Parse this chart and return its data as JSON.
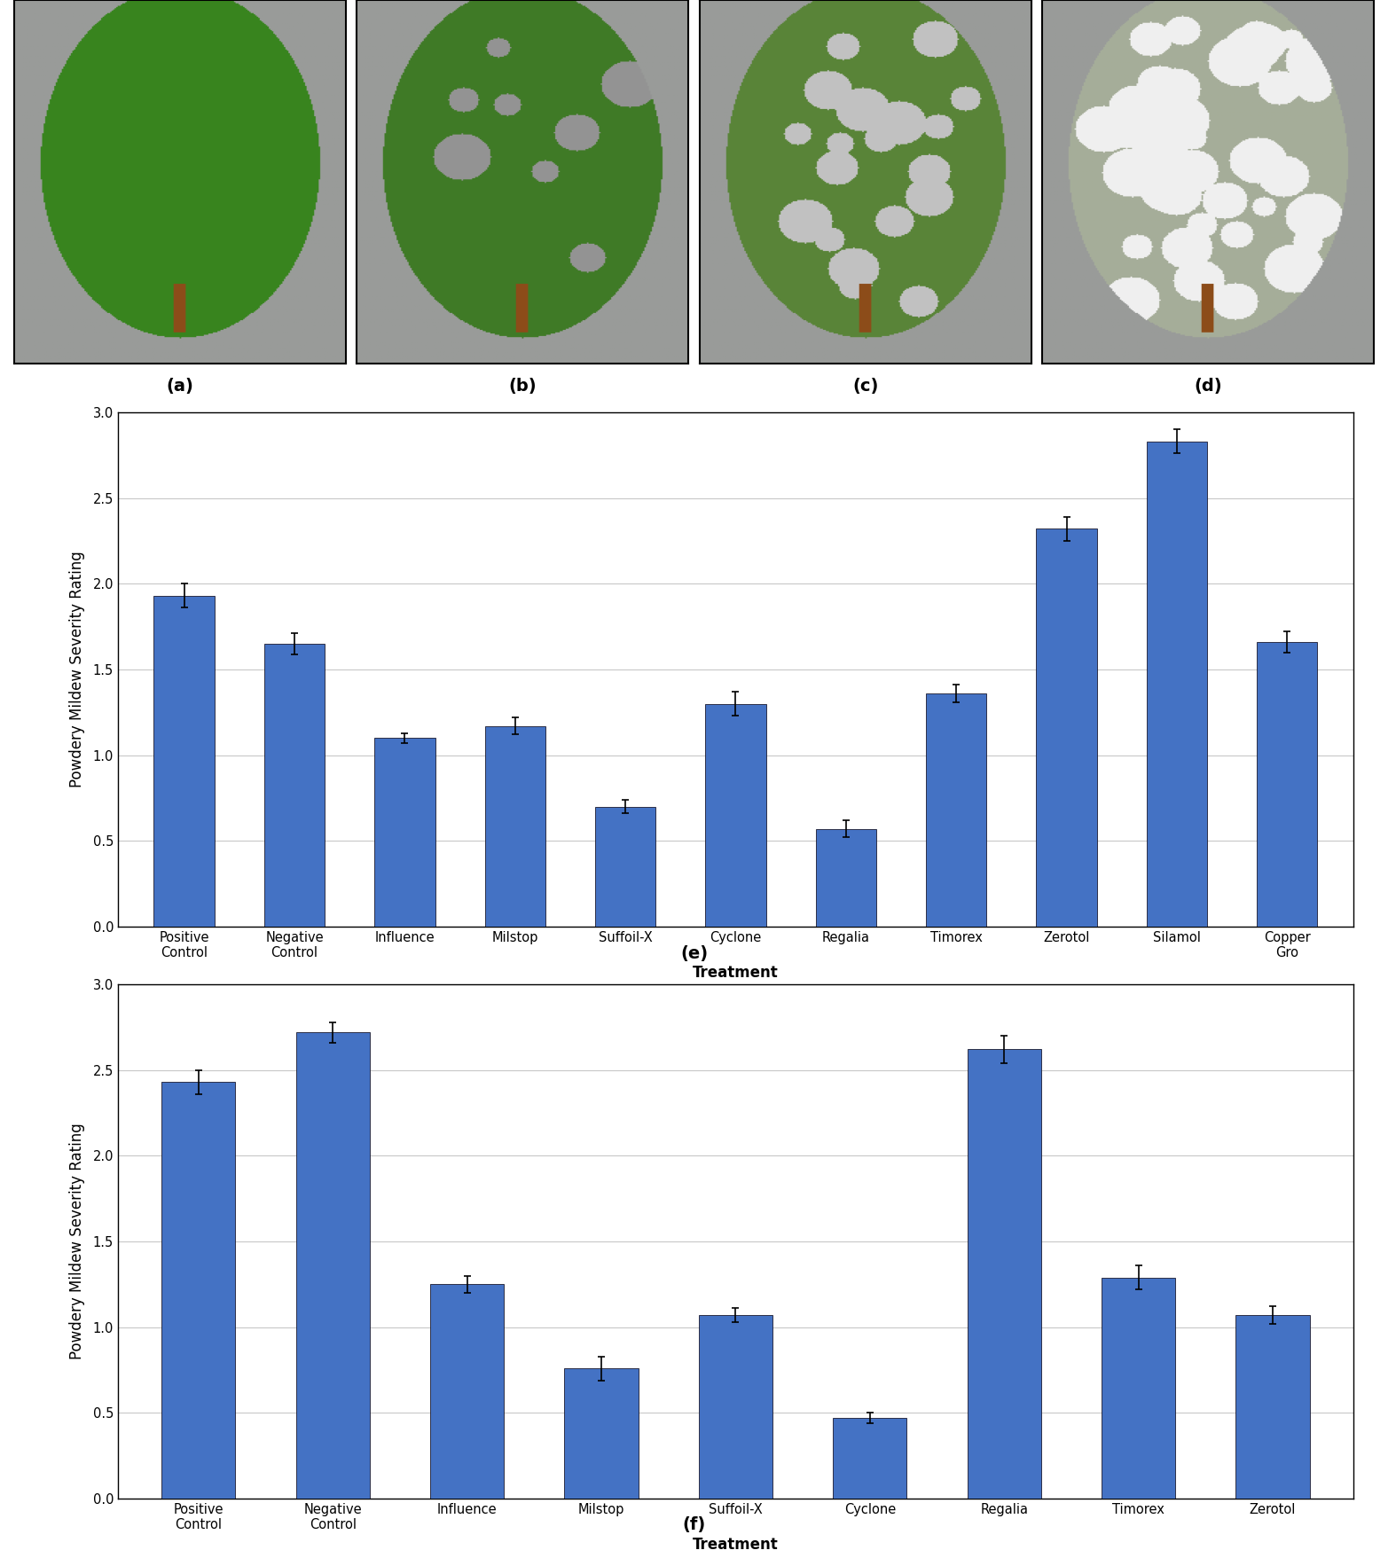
{
  "chart_e": {
    "categories": [
      "Positive\nControl",
      "Negative\nControl",
      "Influence",
      "Milstop",
      "Suffoil-X",
      "Cyclone",
      "Regalia",
      "Timorex",
      "Zerotol",
      "Silamol",
      "Copper\nGro"
    ],
    "values": [
      1.93,
      1.65,
      1.1,
      1.17,
      0.7,
      1.3,
      0.57,
      1.36,
      2.32,
      2.83,
      1.66
    ],
    "errors": [
      0.07,
      0.06,
      0.03,
      0.05,
      0.04,
      0.07,
      0.05,
      0.05,
      0.07,
      0.07,
      0.06
    ],
    "ylabel": "Powdery Mildew Severity Rating",
    "xlabel": "Treatment",
    "label": "(e)",
    "ylim": [
      0,
      3.0
    ],
    "yticks": [
      0.0,
      0.5,
      1.0,
      1.5,
      2.0,
      2.5,
      3.0
    ]
  },
  "chart_f": {
    "categories": [
      "Positive\nControl",
      "Negative\nControl",
      "Influence",
      "Milstop",
      "Suffoil-X",
      "Cyclone",
      "Regalia",
      "Timorex",
      "Zerotol"
    ],
    "values": [
      2.43,
      2.72,
      1.25,
      0.76,
      1.07,
      0.47,
      2.62,
      1.29,
      1.07
    ],
    "errors": [
      0.07,
      0.06,
      0.05,
      0.07,
      0.04,
      0.03,
      0.08,
      0.07,
      0.05
    ],
    "ylabel": "Powdery Mildew Severity Rating",
    "xlabel": "Treatment",
    "label": "(f)",
    "ylim": [
      0,
      3.0
    ],
    "yticks": [
      0.0,
      0.5,
      1.0,
      1.5,
      2.0,
      2.5,
      3.0
    ]
  },
  "bar_color": "#4472C4",
  "bar_edge_color": "#1a1a2e",
  "bar_width": 0.55,
  "error_color": "black",
  "error_capsize": 3,
  "error_linewidth": 1.2,
  "grid_color": "#c8c8c8",
  "grid_linewidth": 0.8,
  "photo_labels": [
    "(a)",
    "(b)",
    "(c)",
    "(d)"
  ],
  "axis_label_fontsize": 12,
  "tick_label_fontsize": 10.5,
  "panel_label_fontsize": 14,
  "figure_bgcolor": "white"
}
